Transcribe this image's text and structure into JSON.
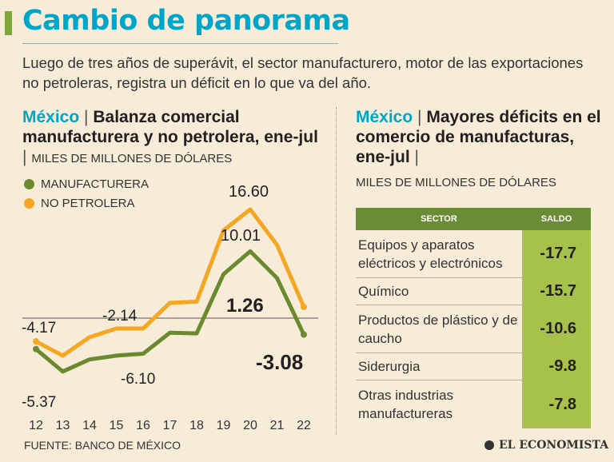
{
  "header": {
    "title": "Cambio de panorama",
    "subtitle": "Luego de tres años de superávit, el sector manufacturero, motor de las exportaciones no petroleras, registra un déficit en lo que va del año."
  },
  "colors": {
    "manufacturera": "#6b8a2f",
    "no_petrolera": "#f5a623",
    "accent": "#00a6c9",
    "table_header": "#6a8c34",
    "table_value": "#a6c24a"
  },
  "left_panel": {
    "country": "México",
    "sep": "|",
    "title": "Balanza comercial manufacturera y no petrolera, ene-jul",
    "units": "MILES DE MILLONES DE DÓLARES"
  },
  "right_panel": {
    "country": "México",
    "sep": "|",
    "title": "Mayores déficits en el comercio de manufacturas, ene-jul",
    "units": "MILES DE MILLONES DE DÓLARES"
  },
  "chart_data": {
    "type": "line",
    "title": "Balanza comercial manufacturera y no petrolera, ene-jul",
    "ylabel": "MILES DE MILLONES DE DÓLARES",
    "x": [
      "12",
      "13",
      "14",
      "15",
      "16",
      "17",
      "18",
      "19",
      "20",
      "21",
      "22"
    ],
    "series": [
      {
        "name": "MANUFACTURERA",
        "values": [
          -5.37,
          -8.9,
          -7.0,
          -6.4,
          -6.1,
          -2.8,
          -2.9,
          6.4,
          10.01,
          5.8,
          -3.08
        ]
      },
      {
        "name": "NO PETROLERA",
        "values": [
          -4.17,
          -6.4,
          -3.5,
          -2.14,
          -2.14,
          1.9,
          2.1,
          13.3,
          16.6,
          11.0,
          1.26
        ]
      }
    ],
    "labels": [
      {
        "text": "-4.17"
      },
      {
        "text": "-2.14"
      },
      {
        "text": "16.60"
      },
      {
        "text": "10.01"
      },
      {
        "text": "1.26"
      },
      {
        "text": "-3.08"
      },
      {
        "text": "-5.37"
      },
      {
        "text": "-6.10"
      }
    ],
    "ylim": [
      -14,
      22
    ]
  },
  "table": {
    "headers": [
      "SECTOR",
      "SALDO"
    ],
    "rows": [
      {
        "sector": "Equipos y aparatos eléctricos y electrónicos",
        "saldo": "-17.7"
      },
      {
        "sector": "Químico",
        "saldo": "-15.7"
      },
      {
        "sector": "Productos de plástico y de caucho",
        "saldo": "-10.6"
      },
      {
        "sector": "Siderurgia",
        "saldo": "-9.8"
      },
      {
        "sector": "Otras industrias manufactureras",
        "saldo": "-7.8"
      }
    ]
  },
  "footer": {
    "source": "FUENTE: BANCO DE MÉXICO",
    "logo": "EL ECONOMISTA"
  }
}
